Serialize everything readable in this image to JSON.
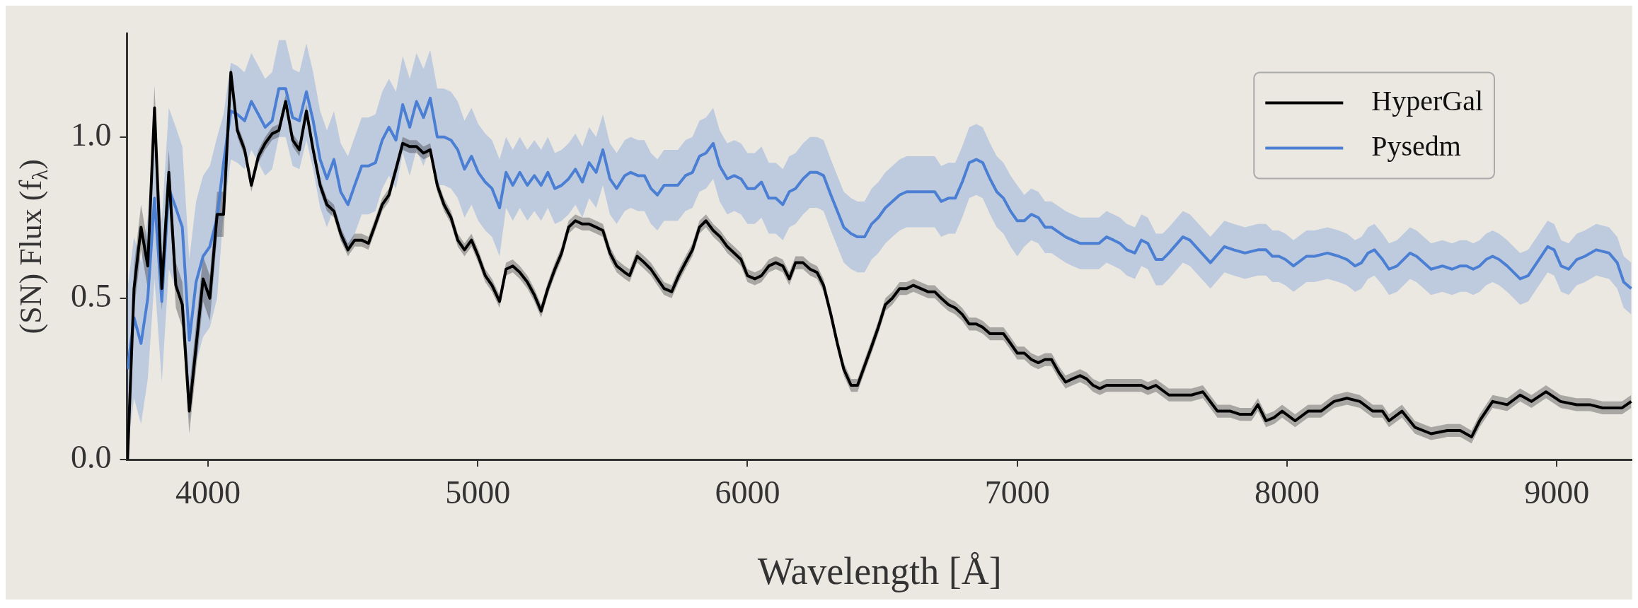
{
  "chart_data": {
    "type": "line",
    "xlabel": "Wavelength [Å]",
    "ylabel": "(SN) Flux (f$_{λ}$)",
    "xlim": [
      3700,
      9280
    ],
    "xticks": [
      4000,
      5000,
      6000,
      7000,
      8000,
      9000
    ],
    "ylim": [
      0,
      1.32
    ],
    "yticks": [
      {
        "value": 0,
        "label": "0.0"
      },
      {
        "value": 0.5,
        "label": "0.5"
      },
      {
        "value": 1,
        "label": "1.0"
      }
    ],
    "legend": "top right",
    "line_style": "solid",
    "marker": "none",
    "series": [
      {
        "name": "HyperGal",
        "color": "#000000",
        "x": [
          3702,
          3726,
          3752,
          3777,
          3802,
          3829,
          3855,
          3881,
          3905,
          3931,
          3956,
          3982,
          4007,
          4034,
          4058,
          4085,
          4109,
          4136,
          4161,
          4187,
          4212,
          4238,
          4263,
          4288,
          4314,
          4339,
          4365,
          4390,
          4416,
          4441,
          4467,
          4492,
          4519,
          4544,
          4570,
          4595,
          4621,
          4646,
          4671,
          4697,
          4722,
          4748,
          4773,
          4799,
          4824,
          4850,
          4875,
          4901,
          4926,
          4951,
          4977,
          5002,
          5028,
          5053,
          5081,
          5105,
          5130,
          5156,
          5184,
          5210,
          5235,
          5260,
          5286,
          5311,
          5337,
          5362,
          5388,
          5413,
          5439,
          5464,
          5490,
          5515,
          5545,
          5563,
          5591,
          5618,
          5642,
          5666,
          5691,
          5719,
          5745,
          5770,
          5796,
          5822,
          5846,
          5873,
          5899,
          5925,
          5951,
          5976,
          6000,
          6027,
          6052,
          6079,
          6105,
          6131,
          6155,
          6178,
          6206,
          6232,
          6258,
          6282,
          6309,
          6333,
          6357,
          6384,
          6408,
          6434,
          6460,
          6485,
          6511,
          6537,
          6564,
          6590,
          6615,
          6642,
          6669,
          6694,
          6718,
          6745,
          6770,
          6796,
          6822,
          6848,
          6872,
          6899,
          6924,
          6949,
          6975,
          7000,
          7026,
          7052,
          7078,
          7103,
          7127,
          7154,
          7179,
          7205,
          7233,
          7257,
          7281,
          7306,
          7331,
          7357,
          7381,
          7418,
          7460,
          7484,
          7514,
          7562,
          7610,
          7646,
          7688,
          7742,
          7790,
          7826,
          7868,
          7892,
          7922,
          7952,
          7982,
          8030,
          8078,
          8126,
          8174,
          8222,
          8270,
          8318,
          8354,
          8378,
          8426,
          8474,
          8534,
          8594,
          8642,
          8684,
          8714,
          8762,
          8816,
          8864,
          8906,
          8960,
          9014,
          9074,
          9122,
          9170,
          9242,
          9276
        ],
        "values": [
          0,
          0.53,
          0.72,
          0.6,
          1.09,
          0.53,
          0.89,
          0.54,
          0.48,
          0.15,
          0.35,
          0.56,
          0.5,
          0.76,
          0.76,
          1.2,
          1.02,
          0.96,
          0.85,
          0.94,
          0.98,
          1.01,
          1.02,
          1.11,
          0.99,
          0.96,
          1.08,
          0.96,
          0.85,
          0.79,
          0.77,
          0.7,
          0.65,
          0.68,
          0.68,
          0.67,
          0.73,
          0.79,
          0.82,
          0.9,
          0.98,
          0.97,
          0.97,
          0.95,
          0.96,
          0.85,
          0.79,
          0.75,
          0.68,
          0.65,
          0.68,
          0.63,
          0.57,
          0.54,
          0.49,
          0.59,
          0.6,
          0.58,
          0.55,
          0.51,
          0.46,
          0.53,
          0.59,
          0.64,
          0.72,
          0.74,
          0.73,
          0.73,
          0.72,
          0.71,
          0.64,
          0.6,
          0.58,
          0.57,
          0.63,
          0.61,
          0.59,
          0.56,
          0.53,
          0.52,
          0.57,
          0.61,
          0.65,
          0.72,
          0.74,
          0.71,
          0.69,
          0.66,
          0.64,
          0.62,
          0.57,
          0.56,
          0.57,
          0.6,
          0.61,
          0.6,
          0.56,
          0.61,
          0.61,
          0.59,
          0.58,
          0.54,
          0.45,
          0.36,
          0.28,
          0.23,
          0.23,
          0.29,
          0.35,
          0.41,
          0.48,
          0.5,
          0.53,
          0.53,
          0.54,
          0.53,
          0.52,
          0.52,
          0.5,
          0.48,
          0.47,
          0.45,
          0.42,
          0.42,
          0.41,
          0.39,
          0.39,
          0.39,
          0.36,
          0.33,
          0.33,
          0.31,
          0.3,
          0.31,
          0.31,
          0.27,
          0.24,
          0.25,
          0.26,
          0.25,
          0.23,
          0.22,
          0.23,
          0.23,
          0.23,
          0.23,
          0.23,
          0.22,
          0.23,
          0.2,
          0.2,
          0.2,
          0.21,
          0.15,
          0.15,
          0.14,
          0.14,
          0.17,
          0.12,
          0.13,
          0.15,
          0.12,
          0.15,
          0.15,
          0.18,
          0.19,
          0.18,
          0.15,
          0.15,
          0.12,
          0.15,
          0.1,
          0.08,
          0.09,
          0.09,
          0.07,
          0.12,
          0.18,
          0.17,
          0.2,
          0.18,
          0.21,
          0.18,
          0.17,
          0.17,
          0.16,
          0.16,
          0.18
        ],
        "lower": [
          0,
          0.46,
          0.65,
          0.53,
          1.02,
          0.46,
          0.82,
          0.47,
          0.41,
          0.08,
          0.28,
          0.49,
          0.43,
          0.69,
          0.69,
          1.18,
          1,
          0.94,
          0.83,
          0.92,
          0.96,
          0.99,
          1,
          1.09,
          0.97,
          0.94,
          1.06,
          0.94,
          0.83,
          0.77,
          0.75,
          0.68,
          0.63,
          0.66,
          0.66,
          0.65,
          0.71,
          0.77,
          0.8,
          0.88,
          0.96,
          0.95,
          0.95,
          0.93,
          0.94,
          0.83,
          0.77,
          0.73,
          0.66,
          0.63,
          0.66,
          0.61,
          0.55,
          0.52,
          0.47,
          0.57,
          0.58,
          0.56,
          0.53,
          0.49,
          0.44,
          0.51,
          0.57,
          0.62,
          0.7,
          0.72,
          0.71,
          0.71,
          0.7,
          0.69,
          0.62,
          0.58,
          0.56,
          0.55,
          0.61,
          0.59,
          0.57,
          0.54,
          0.51,
          0.5,
          0.55,
          0.59,
          0.63,
          0.7,
          0.72,
          0.69,
          0.67,
          0.64,
          0.62,
          0.6,
          0.55,
          0.54,
          0.55,
          0.58,
          0.59,
          0.58,
          0.54,
          0.59,
          0.59,
          0.57,
          0.56,
          0.52,
          0.43,
          0.34,
          0.26,
          0.21,
          0.21,
          0.27,
          0.33,
          0.39,
          0.46,
          0.48,
          0.51,
          0.51,
          0.52,
          0.51,
          0.5,
          0.5,
          0.48,
          0.46,
          0.45,
          0.43,
          0.4,
          0.4,
          0.39,
          0.37,
          0.37,
          0.37,
          0.34,
          0.31,
          0.31,
          0.29,
          0.28,
          0.29,
          0.29,
          0.25,
          0.22,
          0.23,
          0.24,
          0.23,
          0.21,
          0.2,
          0.21,
          0.21,
          0.21,
          0.21,
          0.21,
          0.2,
          0.21,
          0.18,
          0.18,
          0.18,
          0.19,
          0.13,
          0.13,
          0.12,
          0.12,
          0.15,
          0.1,
          0.11,
          0.13,
          0.1,
          0.13,
          0.13,
          0.16,
          0.17,
          0.16,
          0.13,
          0.13,
          0.1,
          0.13,
          0.08,
          0.06,
          0.07,
          0.07,
          0.05,
          0.1,
          0.16,
          0.15,
          0.18,
          0.16,
          0.19,
          0.16,
          0.15,
          0.15,
          0.14,
          0.14,
          0.16
        ],
        "upper": [
          0.07,
          0.6,
          0.79,
          0.67,
          1.16,
          0.6,
          0.96,
          0.61,
          0.55,
          0.22,
          0.42,
          0.63,
          0.57,
          0.83,
          0.83,
          1.22,
          1.04,
          0.98,
          0.87,
          0.96,
          1,
          1.03,
          1.04,
          1.13,
          1.01,
          0.98,
          1.1,
          0.98,
          0.87,
          0.81,
          0.79,
          0.72,
          0.67,
          0.7,
          0.7,
          0.69,
          0.75,
          0.81,
          0.84,
          0.92,
          1,
          0.99,
          0.99,
          0.97,
          0.98,
          0.87,
          0.81,
          0.77,
          0.7,
          0.67,
          0.7,
          0.65,
          0.59,
          0.56,
          0.51,
          0.61,
          0.62,
          0.6,
          0.57,
          0.53,
          0.48,
          0.55,
          0.61,
          0.66,
          0.74,
          0.76,
          0.75,
          0.75,
          0.74,
          0.73,
          0.66,
          0.62,
          0.6,
          0.59,
          0.65,
          0.63,
          0.61,
          0.58,
          0.55,
          0.54,
          0.59,
          0.63,
          0.67,
          0.74,
          0.76,
          0.73,
          0.71,
          0.68,
          0.66,
          0.64,
          0.59,
          0.58,
          0.59,
          0.62,
          0.63,
          0.62,
          0.58,
          0.63,
          0.63,
          0.61,
          0.6,
          0.56,
          0.47,
          0.38,
          0.3,
          0.25,
          0.25,
          0.31,
          0.37,
          0.43,
          0.5,
          0.52,
          0.55,
          0.55,
          0.56,
          0.55,
          0.54,
          0.54,
          0.52,
          0.5,
          0.49,
          0.47,
          0.44,
          0.44,
          0.43,
          0.41,
          0.41,
          0.41,
          0.38,
          0.35,
          0.35,
          0.33,
          0.32,
          0.33,
          0.33,
          0.29,
          0.26,
          0.27,
          0.28,
          0.27,
          0.25,
          0.24,
          0.25,
          0.25,
          0.25,
          0.25,
          0.25,
          0.24,
          0.25,
          0.22,
          0.22,
          0.22,
          0.23,
          0.17,
          0.17,
          0.16,
          0.16,
          0.19,
          0.14,
          0.15,
          0.17,
          0.14,
          0.17,
          0.17,
          0.2,
          0.21,
          0.2,
          0.17,
          0.17,
          0.14,
          0.17,
          0.12,
          0.1,
          0.11,
          0.11,
          0.09,
          0.14,
          0.2,
          0.19,
          0.22,
          0.2,
          0.23,
          0.2,
          0.19,
          0.19,
          0.18,
          0.18,
          0.2
        ]
      },
      {
        "name": "Pysedm",
        "color": "#4a7fd4",
        "x": [
          3702,
          3726,
          3752,
          3777,
          3802,
          3829,
          3855,
          3881,
          3905,
          3931,
          3956,
          3982,
          4007,
          4034,
          4058,
          4085,
          4109,
          4136,
          4161,
          4187,
          4212,
          4238,
          4263,
          4288,
          4314,
          4339,
          4365,
          4390,
          4416,
          4441,
          4467,
          4492,
          4519,
          4544,
          4570,
          4595,
          4621,
          4646,
          4671,
          4697,
          4722,
          4748,
          4773,
          4799,
          4824,
          4850,
          4875,
          4901,
          4926,
          4951,
          4977,
          5002,
          5028,
          5053,
          5081,
          5105,
          5130,
          5156,
          5184,
          5210,
          5235,
          5260,
          5286,
          5311,
          5337,
          5362,
          5388,
          5413,
          5439,
          5464,
          5490,
          5515,
          5545,
          5567,
          5594,
          5618,
          5642,
          5666,
          5691,
          5742,
          5770,
          5796,
          5822,
          5846,
          5873,
          5897,
          5925,
          5951,
          5976,
          6000,
          6027,
          6052,
          6079,
          6105,
          6131,
          6155,
          6178,
          6206,
          6232,
          6258,
          6282,
          6309,
          6333,
          6357,
          6384,
          6408,
          6434,
          6460,
          6485,
          6511,
          6537,
          6564,
          6590,
          6642,
          6669,
          6694,
          6718,
          6745,
          6770,
          6796,
          6822,
          6848,
          6872,
          6899,
          6924,
          6949,
          6975,
          7000,
          7026,
          7052,
          7078,
          7103,
          7127,
          7179,
          7205,
          7233,
          7257,
          7303,
          7331,
          7357,
          7381,
          7406,
          7436,
          7460,
          7484,
          7514,
          7538,
          7562,
          7614,
          7640,
          7716,
          7768,
          7802,
          7844,
          7892,
          7922,
          7946,
          7970,
          7994,
          8024,
          8072,
          8102,
          8150,
          8192,
          8222,
          8252,
          8276,
          8300,
          8324,
          8354,
          8378,
          8408,
          8456,
          8480,
          8534,
          8576,
          8612,
          8642,
          8666,
          8690,
          8714,
          8738,
          8762,
          8786,
          8816,
          8864,
          8894,
          8966,
          8990,
          9016,
          9044,
          9074,
          9104,
          9146,
          9194,
          9224,
          9248,
          9276
        ],
        "values": [
          0.28,
          0.44,
          0.36,
          0.5,
          0.81,
          0.49,
          0.84,
          0.78,
          0.72,
          0.37,
          0.55,
          0.63,
          0.66,
          0.75,
          0.92,
          1.08,
          1.07,
          1.05,
          1.11,
          1.07,
          1.03,
          1.05,
          1.15,
          1.15,
          1.06,
          1.05,
          1.14,
          1.05,
          0.93,
          0.87,
          0.93,
          0.83,
          0.79,
          0.85,
          0.91,
          0.91,
          0.92,
          0.99,
          1.03,
          0.99,
          1.1,
          1.03,
          1.11,
          1.06,
          1.12,
          1,
          1,
          0.99,
          0.96,
          0.9,
          0.94,
          0.89,
          0.86,
          0.84,
          0.78,
          0.89,
          0.85,
          0.89,
          0.85,
          0.88,
          0.85,
          0.89,
          0.84,
          0.85,
          0.87,
          0.9,
          0.86,
          0.92,
          0.89,
          0.96,
          0.87,
          0.84,
          0.88,
          0.89,
          0.88,
          0.88,
          0.84,
          0.82,
          0.85,
          0.85,
          0.88,
          0.89,
          0.94,
          0.95,
          0.98,
          0.91,
          0.87,
          0.88,
          0.87,
          0.84,
          0.84,
          0.86,
          0.81,
          0.81,
          0.79,
          0.83,
          0.84,
          0.87,
          0.89,
          0.89,
          0.88,
          0.82,
          0.77,
          0.72,
          0.7,
          0.69,
          0.69,
          0.73,
          0.75,
          0.78,
          0.8,
          0.82,
          0.83,
          0.83,
          0.83,
          0.83,
          0.8,
          0.81,
          0.81,
          0.86,
          0.92,
          0.93,
          0.92,
          0.87,
          0.83,
          0.81,
          0.77,
          0.74,
          0.74,
          0.76,
          0.75,
          0.72,
          0.72,
          0.69,
          0.68,
          0.67,
          0.67,
          0.67,
          0.69,
          0.68,
          0.67,
          0.65,
          0.64,
          0.68,
          0.67,
          0.62,
          0.62,
          0.64,
          0.69,
          0.68,
          0.61,
          0.66,
          0.65,
          0.64,
          0.65,
          0.65,
          0.63,
          0.63,
          0.62,
          0.6,
          0.63,
          0.63,
          0.64,
          0.63,
          0.62,
          0.6,
          0.61,
          0.64,
          0.65,
          0.62,
          0.59,
          0.6,
          0.64,
          0.63,
          0.59,
          0.6,
          0.59,
          0.6,
          0.6,
          0.59,
          0.6,
          0.62,
          0.63,
          0.62,
          0.6,
          0.56,
          0.57,
          0.66,
          0.65,
          0.6,
          0.59,
          0.62,
          0.63,
          0.65,
          0.64,
          0.61,
          0.55,
          0.53
        ],
        "lower": [
          0.03,
          0.19,
          0.11,
          0.25,
          0.56,
          0.24,
          0.59,
          0.53,
          0.47,
          0.12,
          0.3,
          0.38,
          0.41,
          0.5,
          0.77,
          0.93,
          0.92,
          0.9,
          0.96,
          0.92,
          0.88,
          0.9,
          1,
          1,
          0.91,
          0.9,
          0.99,
          0.9,
          0.78,
          0.72,
          0.78,
          0.68,
          0.64,
          0.7,
          0.76,
          0.76,
          0.77,
          0.84,
          0.88,
          0.84,
          0.95,
          0.88,
          0.96,
          0.91,
          0.97,
          0.85,
          0.85,
          0.84,
          0.81,
          0.75,
          0.79,
          0.74,
          0.71,
          0.69,
          0.63,
          0.78,
          0.74,
          0.78,
          0.74,
          0.77,
          0.74,
          0.78,
          0.73,
          0.74,
          0.76,
          0.79,
          0.75,
          0.81,
          0.78,
          0.85,
          0.76,
          0.73,
          0.77,
          0.78,
          0.77,
          0.77,
          0.73,
          0.71,
          0.74,
          0.74,
          0.77,
          0.78,
          0.83,
          0.84,
          0.87,
          0.8,
          0.76,
          0.77,
          0.76,
          0.73,
          0.73,
          0.75,
          0.7,
          0.7,
          0.68,
          0.72,
          0.73,
          0.76,
          0.78,
          0.78,
          0.77,
          0.71,
          0.66,
          0.61,
          0.59,
          0.58,
          0.58,
          0.62,
          0.64,
          0.67,
          0.69,
          0.71,
          0.72,
          0.72,
          0.72,
          0.72,
          0.69,
          0.7,
          0.7,
          0.75,
          0.81,
          0.82,
          0.81,
          0.76,
          0.72,
          0.7,
          0.66,
          0.63,
          0.66,
          0.68,
          0.67,
          0.64,
          0.64,
          0.61,
          0.6,
          0.59,
          0.59,
          0.59,
          0.61,
          0.6,
          0.59,
          0.57,
          0.56,
          0.6,
          0.59,
          0.54,
          0.54,
          0.56,
          0.61,
          0.6,
          0.53,
          0.58,
          0.57,
          0.56,
          0.57,
          0.57,
          0.55,
          0.55,
          0.54,
          0.52,
          0.55,
          0.55,
          0.56,
          0.55,
          0.54,
          0.52,
          0.53,
          0.56,
          0.57,
          0.54,
          0.51,
          0.52,
          0.56,
          0.55,
          0.51,
          0.52,
          0.51,
          0.52,
          0.52,
          0.51,
          0.52,
          0.54,
          0.55,
          0.54,
          0.52,
          0.48,
          0.49,
          0.58,
          0.57,
          0.52,
          0.51,
          0.54,
          0.55,
          0.57,
          0.56,
          0.53,
          0.47,
          0.45
        ],
        "upper": [
          0.53,
          0.69,
          0.61,
          0.75,
          1.06,
          0.74,
          1.09,
          1.03,
          0.97,
          0.62,
          0.8,
          0.88,
          0.91,
          1,
          1.07,
          1.23,
          1.22,
          1.2,
          1.26,
          1.22,
          1.18,
          1.2,
          1.3,
          1.3,
          1.21,
          1.2,
          1.29,
          1.2,
          1.08,
          1.02,
          1.08,
          0.98,
          0.94,
          1,
          1.06,
          1.06,
          1.07,
          1.14,
          1.18,
          1.14,
          1.25,
          1.18,
          1.26,
          1.21,
          1.27,
          1.15,
          1.15,
          1.14,
          1.11,
          1.05,
          1.09,
          1.04,
          1.01,
          0.99,
          0.93,
          1,
          0.96,
          1,
          0.96,
          0.99,
          0.96,
          1,
          0.95,
          0.96,
          0.98,
          1.01,
          0.97,
          1.03,
          1,
          1.07,
          0.98,
          0.95,
          0.99,
          1,
          0.99,
          0.99,
          0.95,
          0.93,
          0.96,
          0.96,
          0.99,
          1,
          1.05,
          1.06,
          1.09,
          1.02,
          0.98,
          0.99,
          0.98,
          0.95,
          0.95,
          0.97,
          0.92,
          0.92,
          0.9,
          0.94,
          0.95,
          0.98,
          1,
          1,
          0.99,
          0.93,
          0.88,
          0.83,
          0.81,
          0.8,
          0.8,
          0.84,
          0.86,
          0.89,
          0.91,
          0.93,
          0.94,
          0.94,
          0.94,
          0.94,
          0.91,
          0.92,
          0.92,
          0.97,
          1.03,
          1.04,
          1.03,
          0.98,
          0.94,
          0.92,
          0.88,
          0.85,
          0.82,
          0.84,
          0.83,
          0.8,
          0.8,
          0.77,
          0.76,
          0.75,
          0.75,
          0.75,
          0.77,
          0.76,
          0.75,
          0.73,
          0.72,
          0.76,
          0.75,
          0.7,
          0.7,
          0.72,
          0.77,
          0.76,
          0.69,
          0.74,
          0.73,
          0.72,
          0.73,
          0.73,
          0.71,
          0.71,
          0.7,
          0.68,
          0.71,
          0.71,
          0.72,
          0.71,
          0.7,
          0.68,
          0.69,
          0.72,
          0.73,
          0.7,
          0.67,
          0.68,
          0.72,
          0.71,
          0.67,
          0.68,
          0.67,
          0.68,
          0.68,
          0.67,
          0.68,
          0.7,
          0.71,
          0.7,
          0.68,
          0.64,
          0.65,
          0.74,
          0.73,
          0.68,
          0.67,
          0.7,
          0.71,
          0.73,
          0.72,
          0.69,
          0.63,
          0.61
        ]
      }
    ]
  }
}
